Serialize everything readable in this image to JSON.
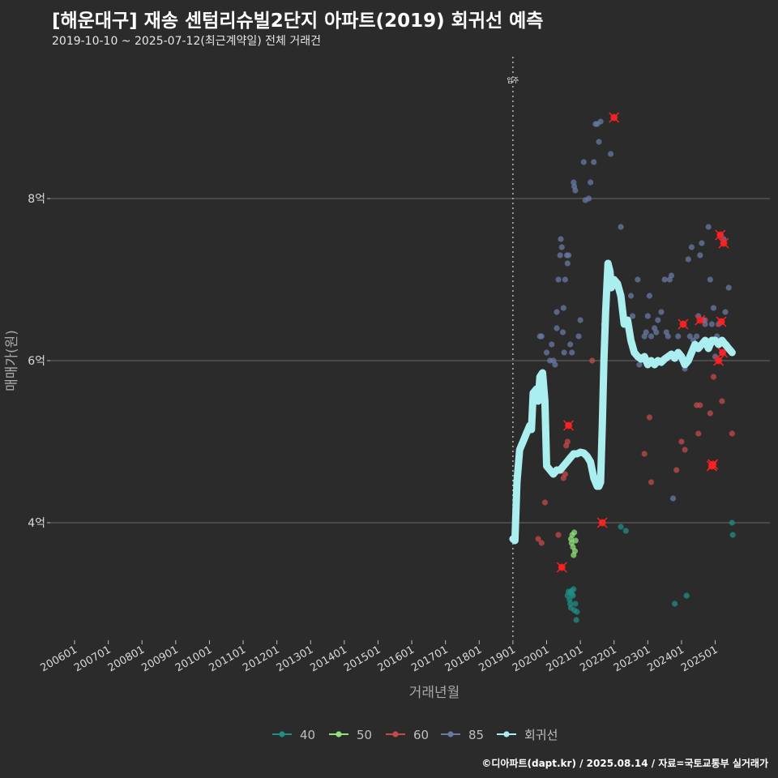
{
  "title": "[해운대구] 재송 센텀리슈빌2단지 아파트(2019) 회귀선 예측",
  "subtitle": "2019-10-10 ~ 2025-07-12(최근계약일) 전체 거래건",
  "caption": "©디아파트(dapt.kr) / 2025.08.14 / 자료=국토교통부 실거래가",
  "chart_data": {
    "type": "scatter",
    "title": "[해운대구] 재송 센텀리슈빌2단지 아파트(2019) 회귀선 예측",
    "xlabel": "거래년월",
    "ylabel": "매매가(원)",
    "x_ticks": [
      "200601",
      "200701",
      "200801",
      "200901",
      "201001",
      "201101",
      "201201",
      "201301",
      "201401",
      "201501",
      "201601",
      "201701",
      "201801",
      "201901",
      "202001",
      "202101",
      "202201",
      "202301",
      "202401",
      "202501"
    ],
    "y_ticks": [
      {
        "value": 4,
        "label": "4억"
      },
      {
        "value": 6,
        "label": "6억"
      },
      {
        "value": 8,
        "label": "8억"
      }
    ],
    "ylim": [
      2.55,
      9.85
    ],
    "annotation": {
      "x": 2019.0,
      "label": "입주"
    },
    "legend_position": "bottom",
    "legend": [
      "40",
      "50",
      "60",
      "85",
      "회귀선"
    ],
    "colors": {
      "40": "#1f8f86",
      "50": "#8fe37a",
      "60": "#c44a4a",
      "85": "#6a79a3",
      "회귀선": "#aaeef0",
      "highlight": "#ff2020"
    },
    "series": [
      {
        "name": "40",
        "points": [
          [
            2020.62,
            3.1
          ],
          [
            2020.65,
            3.15
          ],
          [
            2020.68,
            3.05
          ],
          [
            2020.7,
            3.0
          ],
          [
            2020.72,
            2.95
          ],
          [
            2020.75,
            3.12
          ],
          [
            2020.78,
            3.1
          ],
          [
            2020.8,
            3.18
          ],
          [
            2020.82,
            2.92
          ],
          [
            2020.85,
            3.0
          ],
          [
            2020.88,
            2.8
          ],
          [
            2020.9,
            2.9
          ],
          [
            2020.7,
            3.14
          ],
          [
            2020.74,
            3.16
          ],
          [
            2022.2,
            3.95
          ],
          [
            2022.35,
            3.9
          ],
          [
            2023.8,
            3.0
          ],
          [
            2024.15,
            3.1
          ],
          [
            2025.5,
            4.0
          ],
          [
            2025.52,
            3.85
          ]
        ]
      },
      {
        "name": "50",
        "points": [
          [
            2020.72,
            3.8
          ],
          [
            2020.74,
            3.75
          ],
          [
            2020.76,
            3.85
          ],
          [
            2020.78,
            3.7
          ],
          [
            2020.8,
            3.6
          ],
          [
            2020.82,
            3.88
          ],
          [
            2020.84,
            3.65
          ],
          [
            2020.86,
            3.78
          ]
        ]
      },
      {
        "name": "60",
        "points": [
          [
            2019.75,
            3.8
          ],
          [
            2019.85,
            3.75
          ],
          [
            2019.95,
            4.25
          ],
          [
            2020.35,
            3.85
          ],
          [
            2020.45,
            3.45
          ],
          [
            2020.5,
            4.55
          ],
          [
            2020.55,
            4.6
          ],
          [
            2020.58,
            4.95
          ],
          [
            2020.62,
            5.0
          ],
          [
            2020.65,
            5.2
          ],
          [
            2021.35,
            6.0
          ],
          [
            2021.65,
            4.0
          ],
          [
            2021.7,
            6.45
          ],
          [
            2021.75,
            6.65
          ],
          [
            2022.0,
            9.0
          ],
          [
            2022.9,
            4.85
          ],
          [
            2023.05,
            5.3
          ],
          [
            2023.1,
            4.5
          ],
          [
            2023.85,
            4.65
          ],
          [
            2024.0,
            5.0
          ],
          [
            2024.05,
            6.45
          ],
          [
            2024.1,
            4.9
          ],
          [
            2024.45,
            5.45
          ],
          [
            2024.5,
            5.1
          ],
          [
            2024.55,
            5.45
          ],
          [
            2024.7,
            6.5
          ],
          [
            2024.85,
            5.35
          ],
          [
            2024.9,
            4.7
          ],
          [
            2024.93,
            4.72
          ],
          [
            2024.95,
            5.8
          ],
          [
            2025.1,
            6.0
          ],
          [
            2025.15,
            7.55
          ],
          [
            2025.18,
            6.48
          ],
          [
            2025.2,
            5.5
          ],
          [
            2025.22,
            6.1
          ],
          [
            2025.25,
            7.45
          ],
          [
            2025.5,
            5.1
          ]
        ]
      },
      {
        "name": "85",
        "points": [
          [
            2019.8,
            6.3
          ],
          [
            2019.85,
            6.3
          ],
          [
            2020.0,
            6.1
          ],
          [
            2020.1,
            6.0
          ],
          [
            2020.15,
            6.2
          ],
          [
            2020.2,
            6.0
          ],
          [
            2020.25,
            5.95
          ],
          [
            2020.3,
            6.4
          ],
          [
            2020.3,
            6.6
          ],
          [
            2020.35,
            7.0
          ],
          [
            2020.4,
            7.3
          ],
          [
            2020.42,
            7.5
          ],
          [
            2020.45,
            7.4
          ],
          [
            2020.48,
            6.35
          ],
          [
            2020.5,
            6.65
          ],
          [
            2020.52,
            6.1
          ],
          [
            2020.55,
            7.0
          ],
          [
            2020.6,
            7.3
          ],
          [
            2020.62,
            7.2
          ],
          [
            2020.65,
            7.3
          ],
          [
            2020.7,
            6.2
          ],
          [
            2020.75,
            6.1
          ],
          [
            2020.8,
            8.2
          ],
          [
            2020.82,
            8.15
          ],
          [
            2020.85,
            8.1
          ],
          [
            2020.95,
            6.3
          ],
          [
            2021.0,
            6.5
          ],
          [
            2021.1,
            8.45
          ],
          [
            2021.15,
            7.98
          ],
          [
            2021.25,
            8.0
          ],
          [
            2021.3,
            8.2
          ],
          [
            2021.4,
            8.45
          ],
          [
            2021.45,
            8.92
          ],
          [
            2021.5,
            8.92
          ],
          [
            2021.55,
            8.7
          ],
          [
            2021.6,
            8.95
          ],
          [
            2021.9,
            8.55
          ],
          [
            2022.2,
            7.65
          ],
          [
            2022.5,
            6.8
          ],
          [
            2022.55,
            6.55
          ],
          [
            2022.7,
            7.0
          ],
          [
            2022.75,
            5.95
          ],
          [
            2022.9,
            6.3
          ],
          [
            2022.95,
            6.35
          ],
          [
            2023.0,
            6.55
          ],
          [
            2023.05,
            6.8
          ],
          [
            2023.1,
            6.3
          ],
          [
            2023.2,
            6.4
          ],
          [
            2023.25,
            6.35
          ],
          [
            2023.3,
            6.5
          ],
          [
            2023.4,
            6.6
          ],
          [
            2023.5,
            7.0
          ],
          [
            2023.55,
            6.35
          ],
          [
            2023.6,
            6.3
          ],
          [
            2023.65,
            7.0
          ],
          [
            2023.7,
            7.05
          ],
          [
            2023.75,
            4.3
          ],
          [
            2023.9,
            6.3
          ],
          [
            2024.05,
            6.0
          ],
          [
            2024.1,
            5.9
          ],
          [
            2024.2,
            7.25
          ],
          [
            2024.25,
            6.3
          ],
          [
            2024.3,
            7.4
          ],
          [
            2024.35,
            6.25
          ],
          [
            2024.45,
            6.3
          ],
          [
            2024.5,
            6.55
          ],
          [
            2024.55,
            7.3
          ],
          [
            2024.6,
            7.45
          ],
          [
            2024.65,
            6.5
          ],
          [
            2024.7,
            6.45
          ],
          [
            2024.75,
            6.25
          ],
          [
            2024.8,
            7.65
          ],
          [
            2024.85,
            7.0
          ],
          [
            2024.9,
            6.45
          ],
          [
            2024.95,
            6.65
          ],
          [
            2025.0,
            6.05
          ],
          [
            2025.05,
            6.3
          ],
          [
            2025.1,
            6.45
          ],
          [
            2025.15,
            6.2
          ],
          [
            2025.2,
            6.1
          ],
          [
            2025.25,
            7.5
          ],
          [
            2025.3,
            6.6
          ],
          [
            2025.35,
            6.2
          ],
          [
            2025.4,
            6.9
          ]
        ]
      },
      {
        "name": "회귀선",
        "points": [
          [
            2019.0,
            3.8
          ],
          [
            2019.06,
            3.78
          ],
          [
            2019.12,
            4.5
          ],
          [
            2019.2,
            4.9
          ],
          [
            2019.3,
            5.0
          ],
          [
            2019.4,
            5.1
          ],
          [
            2019.5,
            5.2
          ],
          [
            2019.55,
            5.15
          ],
          [
            2019.6,
            5.6
          ],
          [
            2019.7,
            5.65
          ],
          [
            2019.75,
            5.5
          ],
          [
            2019.8,
            5.8
          ],
          [
            2019.88,
            5.85
          ],
          [
            2019.95,
            5.5
          ],
          [
            2020.0,
            4.7
          ],
          [
            2020.1,
            4.65
          ],
          [
            2020.2,
            4.6
          ],
          [
            2020.3,
            4.65
          ],
          [
            2020.4,
            4.65
          ],
          [
            2020.5,
            4.7
          ],
          [
            2020.6,
            4.75
          ],
          [
            2020.7,
            4.8
          ],
          [
            2020.8,
            4.85
          ],
          [
            2020.9,
            4.85
          ],
          [
            2021.0,
            4.87
          ],
          [
            2021.1,
            4.86
          ],
          [
            2021.2,
            4.82
          ],
          [
            2021.3,
            4.75
          ],
          [
            2021.4,
            4.55
          ],
          [
            2021.5,
            4.45
          ],
          [
            2021.55,
            4.45
          ],
          [
            2021.6,
            4.5
          ],
          [
            2021.65,
            5.2
          ],
          [
            2021.7,
            6.0
          ],
          [
            2021.75,
            6.6
          ],
          [
            2021.82,
            7.2
          ],
          [
            2021.88,
            7.1
          ],
          [
            2021.92,
            6.9
          ],
          [
            2022.0,
            7.0
          ],
          [
            2022.1,
            6.95
          ],
          [
            2022.2,
            6.8
          ],
          [
            2022.3,
            6.45
          ],
          [
            2022.4,
            6.5
          ],
          [
            2022.5,
            6.25
          ],
          [
            2022.6,
            6.1
          ],
          [
            2022.7,
            6.05
          ],
          [
            2022.8,
            6.02
          ],
          [
            2022.9,
            6.05
          ],
          [
            2023.0,
            5.95
          ],
          [
            2023.1,
            6.0
          ],
          [
            2023.2,
            5.95
          ],
          [
            2023.3,
            6.0
          ],
          [
            2023.4,
            5.98
          ],
          [
            2023.5,
            6.02
          ],
          [
            2023.6,
            6.05
          ],
          [
            2023.7,
            6.08
          ],
          [
            2023.8,
            6.03
          ],
          [
            2023.9,
            6.1
          ],
          [
            2024.0,
            6.05
          ],
          [
            2024.1,
            5.95
          ],
          [
            2024.2,
            6.0
          ],
          [
            2024.3,
            6.1
          ],
          [
            2024.4,
            6.2
          ],
          [
            2024.5,
            6.15
          ],
          [
            2024.6,
            6.2
          ],
          [
            2024.7,
            6.25
          ],
          [
            2024.8,
            6.15
          ],
          [
            2024.9,
            6.25
          ],
          [
            2025.0,
            6.25
          ],
          [
            2025.1,
            6.2
          ],
          [
            2025.2,
            6.25
          ],
          [
            2025.3,
            6.2
          ],
          [
            2025.4,
            6.15
          ],
          [
            2025.5,
            6.1
          ]
        ]
      }
    ],
    "highlighted_points": [
      [
        2020.45,
        3.45
      ],
      [
        2020.65,
        5.2
      ],
      [
        2021.65,
        4.0
      ],
      [
        2022.0,
        9.0
      ],
      [
        2024.05,
        6.45
      ],
      [
        2024.55,
        6.5
      ],
      [
        2024.9,
        4.7
      ],
      [
        2024.93,
        4.72
      ],
      [
        2025.1,
        6.0
      ],
      [
        2025.15,
        7.55
      ],
      [
        2025.18,
        6.48
      ],
      [
        2025.22,
        6.1
      ],
      [
        2025.25,
        7.45
      ]
    ]
  }
}
